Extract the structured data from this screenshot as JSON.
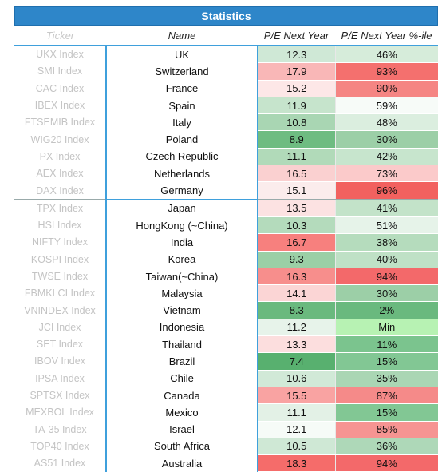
{
  "title": "Statistics",
  "headers": {
    "ticker": "Ticker",
    "name": "Name",
    "pe": "P/E Next Year",
    "pct": "P/E Next Year %-ile"
  },
  "colors": {
    "title_bg": "#2E86C9",
    "frame": "#3fa0dc",
    "ticker_text": "#c4c4c4"
  },
  "rows": [
    {
      "ticker": "UKX Index",
      "name": "UK",
      "pe": "12.3",
      "pct": "46%",
      "pe_bg": "#cfe8d6",
      "pct_bg": "#d6ecda",
      "group": "europe"
    },
    {
      "ticker": "SMI Index",
      "name": "Switzerland",
      "pe": "17.9",
      "pct": "93%",
      "pe_bg": "#f9b7b7",
      "pct_bg": "#f4706e",
      "group": "europe"
    },
    {
      "ticker": "CAC Index",
      "name": "France",
      "pe": "15.2",
      "pct": "90%",
      "pe_bg": "#fde7e7",
      "pct_bg": "#f58583",
      "group": "europe"
    },
    {
      "ticker": "IBEX Index",
      "name": "Spain",
      "pe": "11.9",
      "pct": "59%",
      "pe_bg": "#c6e4cc",
      "pct_bg": "#f7fbf8",
      "group": "europe"
    },
    {
      "ticker": "FTSEMIB Index",
      "name": "Italy",
      "pe": "10.8",
      "pct": "48%",
      "pe_bg": "#a9d6b3",
      "pct_bg": "#dbeedf",
      "group": "europe"
    },
    {
      "ticker": "WIG20 Index",
      "name": "Poland",
      "pe": "8.9",
      "pct": "30%",
      "pe_bg": "#6ebc81",
      "pct_bg": "#9ccfa7",
      "group": "europe"
    },
    {
      "ticker": "PX Index",
      "name": "Czech Republic",
      "pe": "11.1",
      "pct": "42%",
      "pe_bg": "#b1dab9",
      "pct_bg": "#c7e5cd",
      "group": "europe"
    },
    {
      "ticker": "AEX Index",
      "name": "Netherlands",
      "pe": "16.5",
      "pct": "73%",
      "pe_bg": "#fad0d0",
      "pct_bg": "#fbcaca",
      "group": "europe"
    },
    {
      "ticker": "DAX Index",
      "name": "Germany",
      "pe": "15.1",
      "pct": "96%",
      "pe_bg": "#fbecec",
      "pct_bg": "#f2615f",
      "group": "europe"
    },
    {
      "ticker": "TPX Index",
      "name": "Japan",
      "pe": "13.5",
      "pct": "41%",
      "pe_bg": "#fce2e2",
      "pct_bg": "#c3e3c9",
      "group": "asia"
    },
    {
      "ticker": "HSI Index",
      "name": "HongKong (~China)",
      "pe": "10.3",
      "pct": "51%",
      "pe_bg": "#b4dbbc",
      "pct_bg": "#e6f3e9",
      "group": "asia"
    },
    {
      "ticker": "NIFTY Index",
      "name": "India",
      "pe": "16.7",
      "pct": "38%",
      "pe_bg": "#f7807e",
      "pct_bg": "#b5dcbd",
      "group": "asia"
    },
    {
      "ticker": "KOSPI Index",
      "name": "Korea",
      "pe": "9.3",
      "pct": "40%",
      "pe_bg": "#9bcfa6",
      "pct_bg": "#bfe1c6",
      "group": "asia"
    },
    {
      "ticker": "TWSE Index",
      "name": "Taiwan(~China)",
      "pe": "16.3",
      "pct": "94%",
      "pe_bg": "#f78e8c",
      "pct_bg": "#f3696a",
      "group": "asia"
    },
    {
      "ticker": "FBMKLCI Index",
      "name": "Malaysia",
      "pe": "14.1",
      "pct": "30%",
      "pe_bg": "#fbd5d5",
      "pct_bg": "#9ccfa7",
      "group": "asia"
    },
    {
      "ticker": "VNINDEX Index",
      "name": "Vietnam",
      "pe": "8.3",
      "pct": "2%",
      "pe_bg": "#6ab97e",
      "pct_bg": "#6ab97e",
      "group": "asia"
    },
    {
      "ticker": "JCI Index",
      "name": "Indonesia",
      "pe": "11.2",
      "pct": "Min",
      "pe_bg": "#e7f3ea",
      "pct_bg": "#b7f2b3",
      "group": "asia"
    },
    {
      "ticker": "SET Index",
      "name": "Thailand",
      "pe": "13.3",
      "pct": "11%",
      "pe_bg": "#fcdede",
      "pct_bg": "#7bc48e",
      "group": "asia"
    },
    {
      "ticker": "IBOV Index",
      "name": "Brazil",
      "pe": "7.4",
      "pct": "15%",
      "pe_bg": "#58b06f",
      "pct_bg": "#82c794",
      "group": "asia"
    },
    {
      "ticker": "IPSA Index",
      "name": "Chile",
      "pe": "10.6",
      "pct": "35%",
      "pe_bg": "#d1e9d7",
      "pct_bg": "#aad6b4",
      "group": "asia"
    },
    {
      "ticker": "SPTSX Index",
      "name": "Canada",
      "pe": "15.5",
      "pct": "87%",
      "pe_bg": "#f9a3a2",
      "pct_bg": "#f58a89",
      "group": "asia"
    },
    {
      "ticker": "MEXBOL Index",
      "name": "Mexico",
      "pe": "11.1",
      "pct": "15%",
      "pe_bg": "#e3f1e6",
      "pct_bg": "#82c794",
      "group": "asia"
    },
    {
      "ticker": "TA-35 Index",
      "name": "Israel",
      "pe": "12.1",
      "pct": "85%",
      "pe_bg": "#f6fbf7",
      "pct_bg": "#f69492",
      "group": "asia"
    },
    {
      "ticker": "TOP40 Index",
      "name": "South Africa",
      "pe": "10.5",
      "pct": "36%",
      "pe_bg": "#cfe8d5",
      "pct_bg": "#aed8b8",
      "group": "asia"
    },
    {
      "ticker": "AS51 Index",
      "name": "Australia",
      "pe": "18.3",
      "pct": "94%",
      "pe_bg": "#f56c6a",
      "pct_bg": "#f3696a",
      "group": "asia"
    }
  ]
}
